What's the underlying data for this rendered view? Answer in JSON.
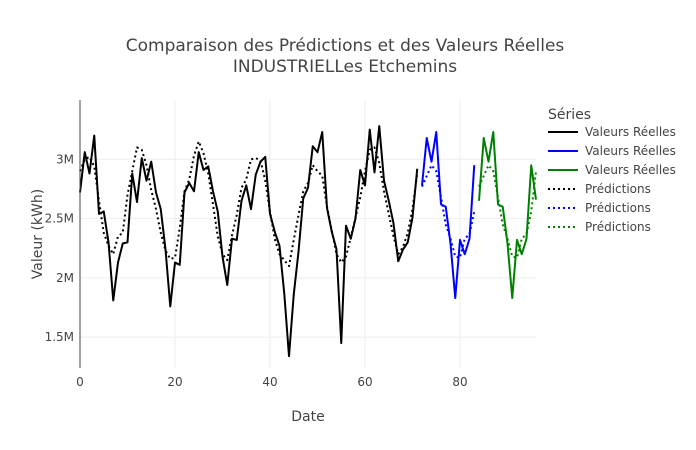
{
  "chart_data": {
    "type": "line",
    "title_line1": "Comparaison des Prédictions et des Valeurs Réelles",
    "title_line2": "INDUSTRIELLes Etchemins",
    "xlabel": "Date",
    "ylabel": "Valeur (kWh)",
    "xlim": [
      0,
      96
    ],
    "ylim": [
      1240000,
      3500000
    ],
    "x_ticks": [
      0,
      20,
      40,
      60,
      80
    ],
    "x_tick_labels": [
      "0",
      "20",
      "40",
      "60",
      "80"
    ],
    "y_ticks": [
      1500000,
      2000000,
      2500000,
      3000000
    ],
    "y_tick_labels": [
      "1.5M",
      "2M",
      "2.5M",
      "3M"
    ],
    "legend_title": "Séries",
    "legend_position": "right",
    "grid": true,
    "series": [
      {
        "name": "Valeurs Réelles",
        "color": "#000000",
        "dash": "solid",
        "x": [
          0,
          1,
          2,
          3,
          4,
          5,
          6,
          7,
          8,
          9,
          10,
          11,
          12,
          13,
          14,
          15,
          16,
          17,
          18,
          19,
          20,
          21,
          22,
          23,
          24,
          25,
          26,
          27,
          28,
          29,
          30,
          31,
          32,
          33,
          34,
          35,
          36,
          37,
          38,
          39,
          40,
          41,
          42,
          43,
          44,
          45,
          46,
          47,
          48,
          49,
          50,
          51,
          52,
          53,
          54,
          55,
          56,
          57,
          58,
          59,
          60,
          61,
          62,
          63,
          64,
          65,
          66,
          67,
          68,
          69,
          70,
          71
        ],
        "y": [
          2720000,
          3060000,
          2880000,
          3200000,
          2540000,
          2560000,
          2300000,
          1810000,
          2130000,
          2290000,
          2300000,
          2880000,
          2640000,
          3010000,
          2820000,
          2980000,
          2720000,
          2580000,
          2240000,
          1760000,
          2130000,
          2110000,
          2720000,
          2800000,
          2730000,
          3060000,
          2910000,
          2940000,
          2730000,
          2560000,
          2180000,
          1940000,
          2330000,
          2320000,
          2650000,
          2780000,
          2580000,
          2870000,
          2980000,
          3020000,
          2540000,
          2390000,
          2270000,
          1870000,
          1340000,
          1860000,
          2220000,
          2670000,
          2760000,
          3110000,
          3060000,
          3230000,
          2590000,
          2390000,
          2240000,
          1450000,
          2440000,
          2330000,
          2500000,
          2910000,
          2780000,
          3250000,
          2890000,
          3280000,
          2820000,
          2650000,
          2460000,
          2140000,
          2240000,
          2300000,
          2510000,
          2920000
        ]
      },
      {
        "name": "Valeurs Réelles",
        "color": "#0000ff",
        "dash": "solid",
        "x": [
          72,
          73,
          74,
          75,
          76,
          77,
          78,
          79,
          80,
          81,
          82,
          83
        ],
        "y": [
          2780000,
          3180000,
          2980000,
          3230000,
          2620000,
          2600000,
          2290000,
          1830000,
          2320000,
          2200000,
          2330000,
          2950000
        ]
      },
      {
        "name": "Valeurs Réelles",
        "color": "#008000",
        "dash": "solid",
        "x": [
          84,
          85,
          86,
          87,
          88,
          89,
          90,
          91,
          92,
          93,
          94,
          95,
          96
        ],
        "y": [
          2650000,
          3180000,
          2980000,
          3230000,
          2620000,
          2600000,
          2290000,
          1830000,
          2320000,
          2200000,
          2330000,
          2950000,
          2660000
        ]
      },
      {
        "name": "Prédictions",
        "color": "#000000",
        "dash": "dot",
        "x": [
          0,
          1,
          2,
          3,
          4,
          5,
          6,
          7,
          8,
          9,
          10,
          11,
          12,
          13,
          14,
          15,
          16,
          17,
          18,
          19,
          20,
          21,
          22,
          23,
          24,
          25,
          26,
          27,
          28,
          29,
          30,
          31,
          32,
          33,
          34,
          35,
          36,
          37,
          38,
          39,
          40,
          41,
          42,
          43,
          44,
          45,
          46,
          47,
          48,
          49,
          50,
          51,
          52,
          53,
          54,
          55,
          56,
          57,
          58,
          59,
          60,
          61,
          62,
          63,
          64,
          65,
          66,
          67,
          68,
          69,
          70,
          71
        ],
        "y": [
          2900000,
          3000000,
          3020000,
          2940000,
          2650000,
          2380000,
          2270000,
          2200000,
          2350000,
          2380000,
          2700000,
          2900000,
          3100000,
          3080000,
          2950000,
          2740000,
          2580000,
          2380000,
          2230000,
          2160000,
          2170000,
          2420000,
          2730000,
          2830000,
          3030000,
          3150000,
          3050000,
          2880000,
          2620000,
          2350000,
          2200000,
          2150000,
          2360000,
          2530000,
          2760000,
          2830000,
          3000000,
          3010000,
          2990000,
          2820000,
          2560000,
          2330000,
          2200000,
          2150000,
          2100000,
          2320000,
          2530000,
          2730000,
          2800000,
          2950000,
          2900000,
          2860000,
          2600000,
          2400000,
          2200000,
          2130000,
          2180000,
          2340000,
          2510000,
          2680000,
          2900000,
          3080000,
          3100000,
          2970000,
          2730000,
          2540000,
          2350000,
          2200000,
          2260000,
          2380000,
          2580000,
          2880000
        ]
      },
      {
        "name": "Prédictions",
        "color": "#0000ff",
        "dash": "dot",
        "x": [
          72,
          73,
          74,
          75,
          76,
          77,
          78,
          79,
          80,
          81,
          82,
          83
        ],
        "y": [
          2770000,
          2860000,
          2950000,
          2900000,
          2680000,
          2450000,
          2330000,
          2180000,
          2170000,
          2330000,
          2370000,
          2560000
        ]
      },
      {
        "name": "Prédictions",
        "color": "#008000",
        "dash": "dot",
        "x": [
          84,
          85,
          86,
          87,
          88,
          89,
          90,
          91,
          92,
          93,
          94,
          95,
          96
        ],
        "y": [
          2770000,
          2860000,
          2950000,
          2900000,
          2680000,
          2450000,
          2330000,
          2180000,
          2170000,
          2330000,
          2370000,
          2560000,
          2900000
        ]
      }
    ]
  }
}
